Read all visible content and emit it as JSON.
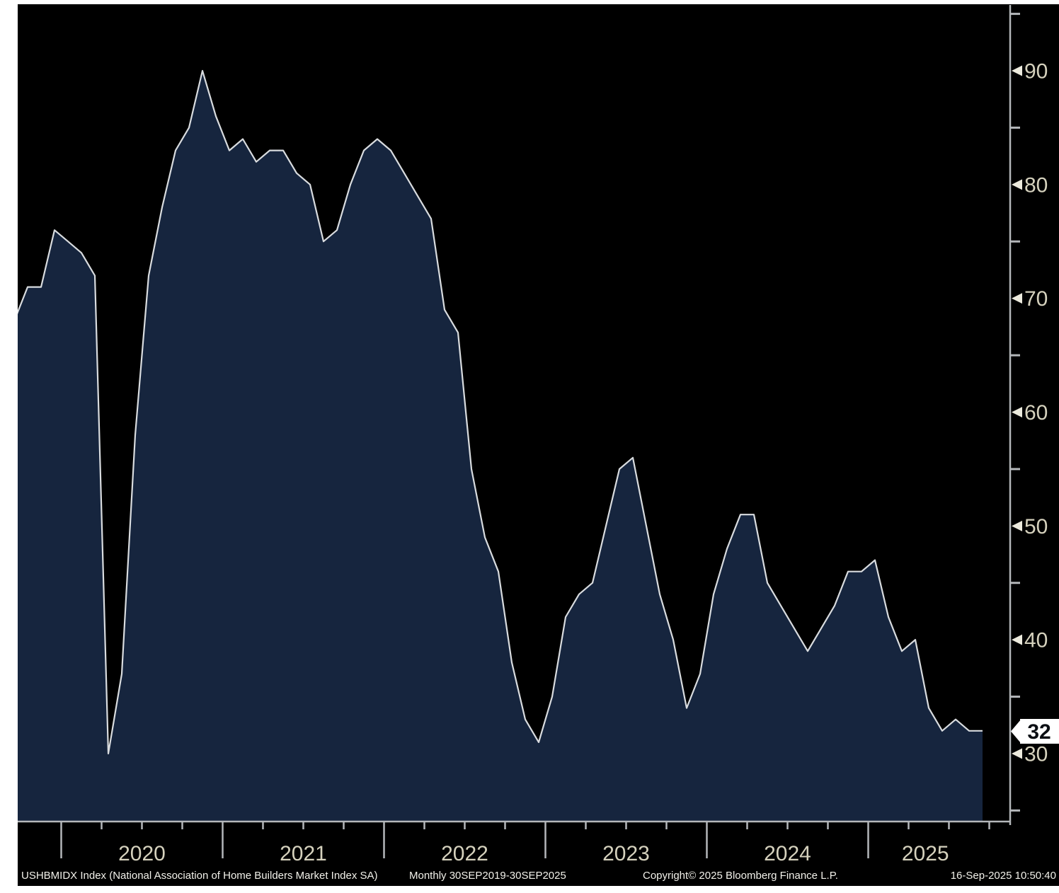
{
  "footer": {
    "ticker_description": "USHBMIDX Index (National Association of Home Builders Market Index SA)",
    "periodicity": "Monthly 30SEP2019-30SEP2025",
    "copyright": "Copyright© 2025 Bloomberg Finance L.P.",
    "timestamp": "16-Sep-2025 10:50:40"
  },
  "axis": {
    "y_major_ticks": [
      30,
      40,
      50,
      60,
      70,
      80,
      90
    ],
    "y_minor_ticks": [
      25,
      35,
      45,
      55,
      65,
      75,
      85,
      95
    ],
    "x_year_labels": [
      "2020",
      "2021",
      "2022",
      "2023",
      "2024",
      "2025"
    ],
    "last_price_label": "32"
  },
  "colors": {
    "page_margin": "#ffffff",
    "background": "#000000",
    "area_fill": "#16253e",
    "line": "#d9dcdf",
    "axis": "#b4b7ba",
    "axis_label": "#d5d1bd",
    "arrow": "#eceadd",
    "footer_text": "#f2f1ea",
    "tag_bg": "#ffffff",
    "tag_text": "#0c0f14"
  },
  "chart_data": {
    "type": "area",
    "title": "USHBMIDX Index (National Association of Home Builders Market Index SA)",
    "series_name": "USHBMIDX Index",
    "frequency": "monthly",
    "x_range": "30SEP2019-30SEP2025",
    "y_axis_side": "right",
    "grid": false,
    "ylim": [
      24,
      95.8
    ],
    "last_value": 32,
    "months": [
      "Sep 2019",
      "Oct 2019",
      "Nov 2019",
      "Dec 2019",
      "Jan 2020",
      "Feb 2020",
      "Mar 2020",
      "Apr 2020",
      "May 2020",
      "Jun 2020",
      "Jul 2020",
      "Aug 2020",
      "Sep 2020",
      "Oct 2020",
      "Nov 2020",
      "Dec 2020",
      "Jan 2021",
      "Feb 2021",
      "Mar 2021",
      "Apr 2021",
      "May 2021",
      "Jun 2021",
      "Jul 2021",
      "Aug 2021",
      "Sep 2021",
      "Oct 2021",
      "Nov 2021",
      "Dec 2021",
      "Jan 2022",
      "Feb 2022",
      "Mar 2022",
      "Apr 2022",
      "May 2022",
      "Jun 2022",
      "Jul 2022",
      "Aug 2022",
      "Sep 2022",
      "Oct 2022",
      "Nov 2022",
      "Dec 2022",
      "Jan 2023",
      "Feb 2023",
      "Mar 2023",
      "Apr 2023",
      "May 2023",
      "Jun 2023",
      "Jul 2023",
      "Aug 2023",
      "Sep 2023",
      "Oct 2023",
      "Nov 2023",
      "Dec 2023",
      "Jan 2024",
      "Feb 2024",
      "Mar 2024",
      "Apr 2024",
      "May 2024",
      "Jun 2024",
      "Jul 2024",
      "Aug 2024",
      "Sep 2024",
      "Oct 2024",
      "Nov 2024",
      "Dec 2024",
      "Jan 2025",
      "Feb 2025",
      "Mar 2025",
      "Apr 2025",
      "May 2025",
      "Jun 2025",
      "Jul 2025",
      "Aug 2025",
      "Sep 2025"
    ],
    "values": [
      68,
      71,
      71,
      76,
      75,
      74,
      72,
      30,
      37,
      58,
      72,
      78,
      83,
      85,
      90,
      86,
      83,
      84,
      82,
      83,
      83,
      81,
      80,
      75,
      76,
      80,
      83,
      84,
      83,
      81,
      79,
      77,
      69,
      67,
      55,
      49,
      46,
      38,
      33,
      31,
      35,
      42,
      44,
      45,
      50,
      55,
      56,
      50,
      44,
      40,
      34,
      37,
      44,
      48,
      51,
      51,
      45,
      43,
      41,
      39,
      41,
      43,
      46,
      46,
      47,
      42,
      39,
      40,
      34,
      32,
      33,
      32,
      32
    ]
  }
}
